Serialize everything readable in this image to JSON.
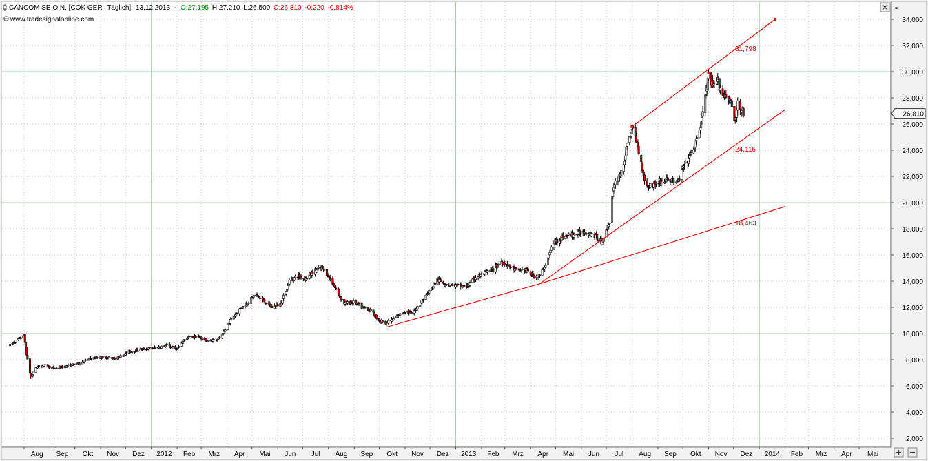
{
  "header": {
    "symbol_icon": "candlestick-icon",
    "instrument": "CANCOM SE O.N. [COK GER",
    "interval": "Täglich]",
    "date": "13.12.2013",
    "open": "O:27,195",
    "high": "H:27,210",
    "low": "L:26,500",
    "close": "C:26,810",
    "change": "-0,220",
    "change_pct": "-0,814%",
    "source": "www.tradesignalonline.com"
  },
  "axis": {
    "currency": "€",
    "last_price_label": "26,810"
  },
  "buttons": {
    "close_icon": "close-icon",
    "zoom_in_icon": "zoom-in-icon",
    "zoom_out_icon": "zoom-out-icon"
  },
  "colors": {
    "up_candle": "#ffffff",
    "down_candle": "#cc0000",
    "trendline": "#ee0000",
    "label_red": "#dd0000",
    "open_green": "#009900",
    "close_red": "#dd0000",
    "background": "#f2f2f2"
  },
  "chart_data": {
    "type": "candlestick",
    "ylim": [
      1000,
      35000
    ],
    "grid": true,
    "y_ticks": [
      {
        "value": 2000,
        "label": "2,000"
      },
      {
        "value": 4000,
        "label": "4,000"
      },
      {
        "value": 6000,
        "label": "6,000"
      },
      {
        "value": 8000,
        "label": "8,000"
      },
      {
        "value": 10000,
        "label": "10,000"
      },
      {
        "value": 12000,
        "label": "12,000"
      },
      {
        "value": 14000,
        "label": "14,000"
      },
      {
        "value": 16000,
        "label": "16,000"
      },
      {
        "value": 18000,
        "label": "18,000"
      },
      {
        "value": 20000,
        "label": "20,000"
      },
      {
        "value": 22000,
        "label": "22,000"
      },
      {
        "value": 24000,
        "label": "24,000"
      },
      {
        "value": 26000,
        "label": "26,000"
      },
      {
        "value": 28000,
        "label": "28,000"
      },
      {
        "value": 30000,
        "label": "30,000"
      },
      {
        "value": 32000,
        "label": "32,000"
      },
      {
        "value": 34000,
        "label": "34,000"
      }
    ],
    "x_ticks": [
      {
        "date": "2011-08-01",
        "label": "Aug"
      },
      {
        "date": "2011-09-01",
        "label": "Sep"
      },
      {
        "date": "2011-10-01",
        "label": "Okt"
      },
      {
        "date": "2011-11-01",
        "label": "Nov"
      },
      {
        "date": "2011-12-01",
        "label": "Dez"
      },
      {
        "date": "2012-01-01",
        "label": "2012"
      },
      {
        "date": "2012-02-01",
        "label": "Feb"
      },
      {
        "date": "2012-03-01",
        "label": "Mrz"
      },
      {
        "date": "2012-04-01",
        "label": "Apr"
      },
      {
        "date": "2012-05-01",
        "label": "Mai"
      },
      {
        "date": "2012-06-01",
        "label": "Jun"
      },
      {
        "date": "2012-07-01",
        "label": "Jul"
      },
      {
        "date": "2012-08-01",
        "label": "Aug"
      },
      {
        "date": "2012-09-01",
        "label": "Sep"
      },
      {
        "date": "2012-10-01",
        "label": "Okt"
      },
      {
        "date": "2012-11-01",
        "label": "Nov"
      },
      {
        "date": "2012-12-01",
        "label": "Dez"
      },
      {
        "date": "2013-01-01",
        "label": "2013"
      },
      {
        "date": "2013-02-01",
        "label": "Feb"
      },
      {
        "date": "2013-03-01",
        "label": "Mrz"
      },
      {
        "date": "2013-04-01",
        "label": "Apr"
      },
      {
        "date": "2013-05-01",
        "label": "Mai"
      },
      {
        "date": "2013-06-01",
        "label": "Jun"
      },
      {
        "date": "2013-07-01",
        "label": "Jul"
      },
      {
        "date": "2013-08-01",
        "label": "Aug"
      },
      {
        "date": "2013-09-01",
        "label": "Sep"
      },
      {
        "date": "2013-10-01",
        "label": "Okt"
      },
      {
        "date": "2013-11-01",
        "label": "Nov"
      },
      {
        "date": "2013-12-01",
        "label": "Dez"
      },
      {
        "date": "2014-01-01",
        "label": "2014"
      },
      {
        "date": "2014-02-01",
        "label": "Feb"
      },
      {
        "date": "2014-03-01",
        "label": "Mrz"
      },
      {
        "date": "2014-04-01",
        "label": "Apr"
      },
      {
        "date": "2014-05-01",
        "label": "Mai"
      }
    ],
    "price_path": [
      [
        "2011-07-15",
        9100
      ],
      [
        "2011-07-28",
        9700
      ],
      [
        "2011-08-01",
        9900
      ],
      [
        "2011-08-04",
        8400
      ],
      [
        "2011-08-09",
        6600
      ],
      [
        "2011-08-15",
        7400
      ],
      [
        "2011-08-25",
        7600
      ],
      [
        "2011-09-05",
        7300
      ],
      [
        "2011-09-20",
        7500
      ],
      [
        "2011-10-05",
        7700
      ],
      [
        "2011-10-20",
        8100
      ],
      [
        "2011-11-03",
        8200
      ],
      [
        "2011-11-20",
        8100
      ],
      [
        "2011-12-05",
        8600
      ],
      [
        "2011-12-20",
        8800
      ],
      [
        "2012-01-05",
        8900
      ],
      [
        "2012-01-20",
        9100
      ],
      [
        "2012-02-01",
        8800
      ],
      [
        "2012-02-10",
        9600
      ],
      [
        "2012-02-25",
        9800
      ],
      [
        "2012-03-10",
        9400
      ],
      [
        "2012-03-25",
        9700
      ],
      [
        "2012-04-05",
        11000
      ],
      [
        "2012-04-15",
        11800
      ],
      [
        "2012-04-25",
        12300
      ],
      [
        "2012-05-05",
        13000
      ],
      [
        "2012-05-15",
        12500
      ],
      [
        "2012-05-25",
        12000
      ],
      [
        "2012-06-05",
        12300
      ],
      [
        "2012-06-15",
        14000
      ],
      [
        "2012-06-25",
        14400
      ],
      [
        "2012-07-05",
        14200
      ],
      [
        "2012-07-15",
        14800
      ],
      [
        "2012-07-25",
        15000
      ],
      [
        "2012-08-05",
        14000
      ],
      [
        "2012-08-12",
        13100
      ],
      [
        "2012-08-20",
        12300
      ],
      [
        "2012-09-01",
        12400
      ],
      [
        "2012-09-10",
        12000
      ],
      [
        "2012-09-20",
        11800
      ],
      [
        "2012-10-01",
        11000
      ],
      [
        "2012-10-10",
        10800
      ],
      [
        "2012-10-20",
        11200
      ],
      [
        "2012-11-01",
        11700
      ],
      [
        "2012-11-10",
        11500
      ],
      [
        "2012-11-20",
        12400
      ],
      [
        "2012-12-01",
        13300
      ],
      [
        "2012-12-10",
        14100
      ],
      [
        "2012-12-20",
        13800
      ],
      [
        "2013-01-05",
        13600
      ],
      [
        "2013-01-15",
        13600
      ],
      [
        "2013-01-25",
        14300
      ],
      [
        "2013-02-05",
        14600
      ],
      [
        "2013-02-15",
        14900
      ],
      [
        "2013-02-25",
        15500
      ],
      [
        "2013-03-05",
        15200
      ],
      [
        "2013-03-15",
        14800
      ],
      [
        "2013-03-25",
        14900
      ],
      [
        "2013-04-05",
        14400
      ],
      [
        "2013-04-12",
        14400
      ],
      [
        "2013-04-20",
        15400
      ],
      [
        "2013-04-28",
        16900
      ],
      [
        "2013-05-10",
        17400
      ],
      [
        "2013-05-25",
        17600
      ],
      [
        "2013-06-05",
        17800
      ],
      [
        "2013-06-15",
        17600
      ],
      [
        "2013-06-25",
        17000
      ],
      [
        "2013-07-01",
        17800
      ],
      [
        "2013-07-05",
        18600
      ],
      [
        "2013-07-08",
        20500
      ],
      [
        "2013-07-12",
        21500
      ],
      [
        "2013-07-18",
        22200
      ],
      [
        "2013-07-22",
        23000
      ],
      [
        "2013-07-26",
        24300
      ],
      [
        "2013-07-30",
        25300
      ],
      [
        "2013-08-02",
        25600
      ],
      [
        "2013-08-07",
        24500
      ],
      [
        "2013-08-12",
        23000
      ],
      [
        "2013-08-18",
        21200
      ],
      [
        "2013-08-26",
        21400
      ],
      [
        "2013-09-05",
        21600
      ],
      [
        "2013-09-15",
        21800
      ],
      [
        "2013-09-25",
        21500
      ],
      [
        "2013-10-01",
        22600
      ],
      [
        "2013-10-10",
        23600
      ],
      [
        "2013-10-18",
        24800
      ],
      [
        "2013-10-24",
        26500
      ],
      [
        "2013-10-29",
        28500
      ],
      [
        "2013-11-01",
        29600
      ],
      [
        "2013-11-06",
        28800
      ],
      [
        "2013-11-12",
        29300
      ],
      [
        "2013-11-18",
        28300
      ],
      [
        "2013-11-25",
        28100
      ],
      [
        "2013-11-29",
        27300
      ],
      [
        "2013-12-03",
        26000
      ],
      [
        "2013-12-06",
        27700
      ],
      [
        "2013-12-10",
        27200
      ],
      [
        "2013-12-13",
        26810
      ]
    ],
    "channel_lines": [
      {
        "from": [
          "2012-10-10",
          10500
        ],
        "to": [
          "2013-04-12",
          13800
        ]
      },
      {
        "from": [
          "2013-04-12",
          13800
        ],
        "to": [
          "2014-02-01",
          19700
        ]
      },
      {
        "from": [
          "2013-04-12",
          13800
        ],
        "to": [
          "2014-02-01",
          27100
        ]
      },
      {
        "from": [
          "2013-08-01",
          25800
        ],
        "to": [
          "2014-01-20",
          34000
        ]
      }
    ],
    "anchor_points": [
      [
        "2013-08-01",
        25800
      ],
      [
        "2013-11-01",
        29900
      ],
      [
        "2014-01-20",
        34000
      ]
    ],
    "levels": [
      {
        "value": 10000
      },
      {
        "value": 20000
      },
      {
        "value": 30000
      }
    ],
    "vertical_lines": [
      "2012-01-01",
      "2013-01-01",
      "2014-01-01"
    ],
    "annotations": [
      {
        "label": "31,798",
        "date": "2013-12-03",
        "value": 31798
      },
      {
        "label": "24,116",
        "date": "2013-12-03",
        "value": 24116
      },
      {
        "label": "18,463",
        "date": "2013-12-03",
        "value": 18463
      }
    ]
  }
}
